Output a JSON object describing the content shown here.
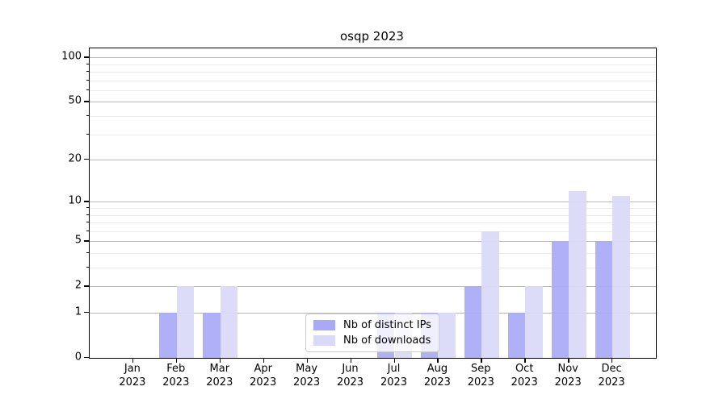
{
  "chart_data": {
    "type": "bar",
    "title": "osqp 2023",
    "categories": [
      "Jan 2023",
      "Feb 2023",
      "Mar 2023",
      "Apr 2023",
      "May 2023",
      "Jun 2023",
      "Jul 2023",
      "Aug 2023",
      "Sep 2023",
      "Oct 2023",
      "Nov 2023",
      "Dec 2023"
    ],
    "series": [
      {
        "name": "Nb of distinct IPs",
        "color": "#a9a9f8",
        "values": [
          0,
          1,
          1,
          0,
          0,
          0,
          1,
          1,
          2,
          1,
          5,
          5
        ]
      },
      {
        "name": "Nb of downloads",
        "color": "#d9d9f8",
        "values": [
          0,
          2,
          2,
          0,
          0,
          0,
          1,
          1,
          6,
          2,
          12,
          11
        ]
      }
    ],
    "xlabel": "",
    "ylabel": "",
    "yscale": "log1p",
    "ylim": [
      0,
      115
    ],
    "y_major_ticks": [
      0,
      1,
      2,
      5,
      10,
      20,
      50,
      100
    ],
    "y_minor_ticks": [
      3,
      4,
      6,
      7,
      8,
      9,
      30,
      40,
      60,
      70,
      80,
      90
    ],
    "grid": true,
    "legend_position": "lower center",
    "colors": {
      "major_grid": "#b9b9b9",
      "minor_grid": "#ededed",
      "spine": "#000000",
      "legend_border": "#cccccc"
    }
  }
}
